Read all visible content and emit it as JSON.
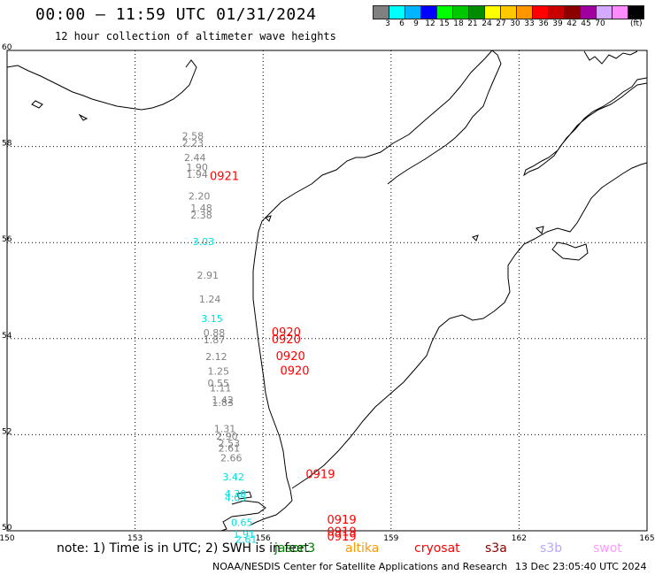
{
  "header": {
    "title": "00:00 — 11:59 UTC 01/31/2024",
    "subtitle": "12 hour collection of altimeter wave heights"
  },
  "legend": {
    "colors": [
      "#808080",
      "#00ffff",
      "#00b4ff",
      "#0000ff",
      "#00ff00",
      "#00c800",
      "#008c00",
      "#ffff00",
      "#ffc800",
      "#ff9600",
      "#ff0000",
      "#c80000",
      "#8c0000",
      "#a000a0",
      "#d2aaff",
      "#ff8cff",
      "#000000"
    ],
    "labels": [
      "3",
      "6",
      "9",
      "12",
      "15",
      "18",
      "21",
      "24",
      "27",
      "30",
      "33",
      "36",
      "39",
      "42",
      "45",
      "70"
    ],
    "unit": "(ft)"
  },
  "map": {
    "lon_ticks": [
      "150",
      "153",
      "156",
      "159",
      "162",
      "165"
    ],
    "lat_ticks": [
      "60",
      "58",
      "56",
      "54",
      "52",
      "50"
    ],
    "wave_labels": [
      {
        "text": "2.58",
        "lon": 154.1,
        "lat": 58.15,
        "color": "#808080"
      },
      {
        "text": "2.23",
        "lon": 154.1,
        "lat": 58.0,
        "color": "#808080"
      },
      {
        "text": "2.44",
        "lon": 154.15,
        "lat": 57.7,
        "color": "#808080"
      },
      {
        "text": "1.90",
        "lon": 154.2,
        "lat": 57.5,
        "color": "#808080"
      },
      {
        "text": "1.94",
        "lon": 154.2,
        "lat": 57.35,
        "color": "#808080"
      },
      {
        "text": "2.20",
        "lon": 154.25,
        "lat": 56.9,
        "color": "#808080"
      },
      {
        "text": "1.48",
        "lon": 154.3,
        "lat": 56.65,
        "color": "#808080"
      },
      {
        "text": "2.38",
        "lon": 154.3,
        "lat": 56.5,
        "color": "#808080"
      },
      {
        "text": "3.03",
        "lon": 154.35,
        "lat": 55.95,
        "color": "#00e0e0"
      },
      {
        "text": "2.91",
        "lon": 154.45,
        "lat": 55.25,
        "color": "#808080"
      },
      {
        "text": "1.24",
        "lon": 154.5,
        "lat": 54.75,
        "color": "#808080"
      },
      {
        "text": "3.15",
        "lon": 154.55,
        "lat": 54.35,
        "color": "#00e0e0"
      },
      {
        "text": "0.88",
        "lon": 154.6,
        "lat": 54.05,
        "color": "#808080"
      },
      {
        "text": "1.87",
        "lon": 154.6,
        "lat": 53.9,
        "color": "#808080"
      },
      {
        "text": "2.12",
        "lon": 154.65,
        "lat": 53.55,
        "color": "#808080"
      },
      {
        "text": "1.25",
        "lon": 154.7,
        "lat": 53.25,
        "color": "#808080"
      },
      {
        "text": "0.55",
        "lon": 154.7,
        "lat": 53.0,
        "color": "#808080"
      },
      {
        "text": "1.11",
        "lon": 154.75,
        "lat": 52.9,
        "color": "#808080"
      },
      {
        "text": "1.42",
        "lon": 154.8,
        "lat": 52.65,
        "color": "#808080"
      },
      {
        "text": "1.83",
        "lon": 154.8,
        "lat": 52.6,
        "color": "#808080"
      },
      {
        "text": "1.31",
        "lon": 154.85,
        "lat": 52.05,
        "color": "#808080"
      },
      {
        "text": "2.90",
        "lon": 154.9,
        "lat": 51.9,
        "color": "#808080"
      },
      {
        "text": "2.53",
        "lon": 154.95,
        "lat": 51.75,
        "color": "#808080"
      },
      {
        "text": "2.61",
        "lon": 154.95,
        "lat": 51.65,
        "color": "#808080"
      },
      {
        "text": "2.66",
        "lon": 155.0,
        "lat": 51.45,
        "color": "#808080"
      },
      {
        "text": "3.42",
        "lon": 155.05,
        "lat": 51.05,
        "color": "#00e0e0"
      },
      {
        "text": "4.30",
        "lon": 155.1,
        "lat": 50.7,
        "color": "#00e0e0"
      },
      {
        "text": "4.05",
        "lon": 155.1,
        "lat": 50.62,
        "color": "#00e0e0"
      },
      {
        "text": "0.65",
        "lon": 155.25,
        "lat": 50.1,
        "color": "#00e0e0"
      },
      {
        "text": "1.91",
        "lon": 155.3,
        "lat": 49.85,
        "color": "#00e0e0"
      },
      {
        "text": "2.61",
        "lon": 155.35,
        "lat": 49.75,
        "color": "#00e0e0"
      }
    ],
    "time_labels": [
      {
        "text": "0921",
        "lon": 154.75,
        "lat": 57.3,
        "color": "#ff0000"
      },
      {
        "text": "0920",
        "lon": 156.2,
        "lat": 54.05,
        "color": "#ff0000"
      },
      {
        "text": "0920",
        "lon": 156.2,
        "lat": 53.9,
        "color": "#ff0000"
      },
      {
        "text": "0920",
        "lon": 156.3,
        "lat": 53.55,
        "color": "#ff0000"
      },
      {
        "text": "0920",
        "lon": 156.4,
        "lat": 53.25,
        "color": "#ff0000"
      },
      {
        "text": "0919",
        "lon": 157.0,
        "lat": 51.1,
        "color": "#ff0000"
      },
      {
        "text": "0919",
        "lon": 157.5,
        "lat": 50.15,
        "color": "#ff0000"
      },
      {
        "text": "0919",
        "lon": 157.5,
        "lat": 49.9,
        "color": "#ff0000"
      },
      {
        "text": "0919",
        "lon": 157.5,
        "lat": 49.8,
        "color": "#ff0000"
      }
    ]
  },
  "footer": {
    "note": "note: 1) Time is in UTC; 2) SWH is in feet",
    "satellites": [
      {
        "name": "jason3",
        "color": "#008000"
      },
      {
        "name": "altika",
        "color": "#ff9900"
      },
      {
        "name": "cryosat",
        "color": "#ff0000"
      },
      {
        "name": "s3a",
        "color": "#8b0000"
      },
      {
        "name": "s3b",
        "color": "#b9a6ff"
      },
      {
        "name": "swot",
        "color": "#ff99ff"
      }
    ],
    "credit": "NOAA/NESDIS Center for Satellite Applications and Research",
    "timestamp": "13 Dec 23:05:40 UTC 2024"
  }
}
